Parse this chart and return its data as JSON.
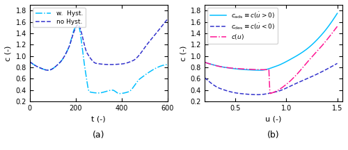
{
  "fig_width": 5.0,
  "fig_height": 2.16,
  "dpi": 100,
  "left_ylim": [
    0.2,
    1.9
  ],
  "left_xlim": [
    0,
    600
  ],
  "left_yticks": [
    0.2,
    0.4,
    0.6,
    0.8,
    1.0,
    1.2,
    1.4,
    1.6,
    1.8
  ],
  "left_xticks": [
    0,
    200,
    400,
    600
  ],
  "left_xlabel": "t (-)",
  "left_ylabel": "c (-)",
  "left_label_a": "(a)",
  "right_ylim": [
    0.2,
    1.9
  ],
  "right_xlim": [
    0.2,
    1.55
  ],
  "right_yticks": [
    0.2,
    0.4,
    0.6,
    0.8,
    1.0,
    1.2,
    1.4,
    1.6,
    1.8
  ],
  "right_xticks": [
    0.5,
    1.0,
    1.5
  ],
  "right_xlabel": "u (-)",
  "right_ylabel": "c (-)",
  "right_label_b": "(b)",
  "color_cyan": "#00BFFF",
  "color_dark_blue": "#3333CC",
  "color_magenta": "#FF1493",
  "background": "#ffffff",
  "tick_fontsize": 7,
  "label_fontsize": 8,
  "legend_fontsize": 6.5,
  "sublabel_fontsize": 9
}
